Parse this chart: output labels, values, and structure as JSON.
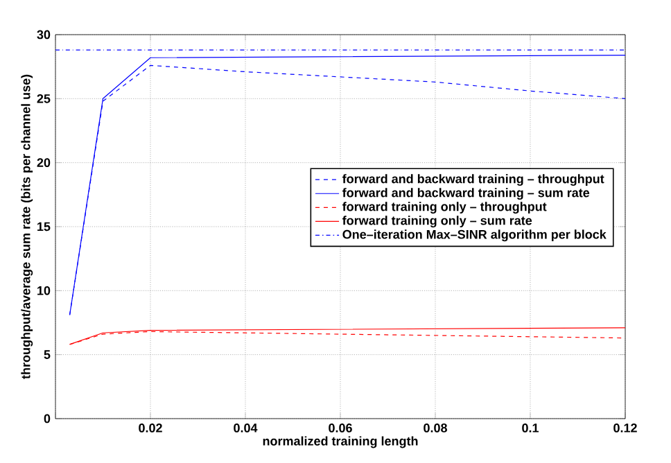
{
  "chart_data": {
    "type": "line",
    "xlabel": "normalized training length",
    "ylabel": "throughput/average sum rate (bits per channel use)",
    "xlim": [
      0,
      0.12
    ],
    "ylim": [
      0,
      30
    ],
    "xticks": [
      {
        "value": 0,
        "label": null
      },
      0.02,
      0.04,
      0.06,
      0.08,
      0.1,
      0.12
    ],
    "yticks": [
      0,
      5,
      10,
      15,
      20,
      25,
      30
    ],
    "grid": true,
    "legend": "right",
    "series": [
      {
        "name": "forward and backward training – throughput",
        "color": "#0000ff",
        "line_style": "dashed",
        "x": [
          0.003,
          0.01,
          0.02,
          0.04,
          0.06,
          0.08,
          0.1,
          0.12
        ],
        "values": [
          8.1,
          24.8,
          27.6,
          27.1,
          26.7,
          26.3,
          25.6,
          25.0
        ]
      },
      {
        "name": "forward and backward training – sum rate",
        "color": "#0000ff",
        "line_style": "solid",
        "x": [
          0.003,
          0.01,
          0.02,
          0.12
        ],
        "values": [
          8.1,
          25.0,
          28.2,
          28.4
        ]
      },
      {
        "name": "forward training only – throughput",
        "color": "#ff0000",
        "line_style": "dashed",
        "x": [
          0.003,
          0.01,
          0.02,
          0.12
        ],
        "values": [
          5.8,
          6.6,
          6.8,
          6.3
        ]
      },
      {
        "name": "forward training only – sum rate",
        "color": "#ff0000",
        "line_style": "solid",
        "x": [
          0.003,
          0.01,
          0.02,
          0.12
        ],
        "values": [
          5.8,
          6.7,
          6.9,
          7.1
        ]
      },
      {
        "name": "One–iteration Max–SINR algorithm per block",
        "color": "#0000ff",
        "line_style": "dashdot",
        "x": [
          0,
          0.12
        ],
        "values": [
          28.8,
          28.8
        ]
      }
    ]
  }
}
